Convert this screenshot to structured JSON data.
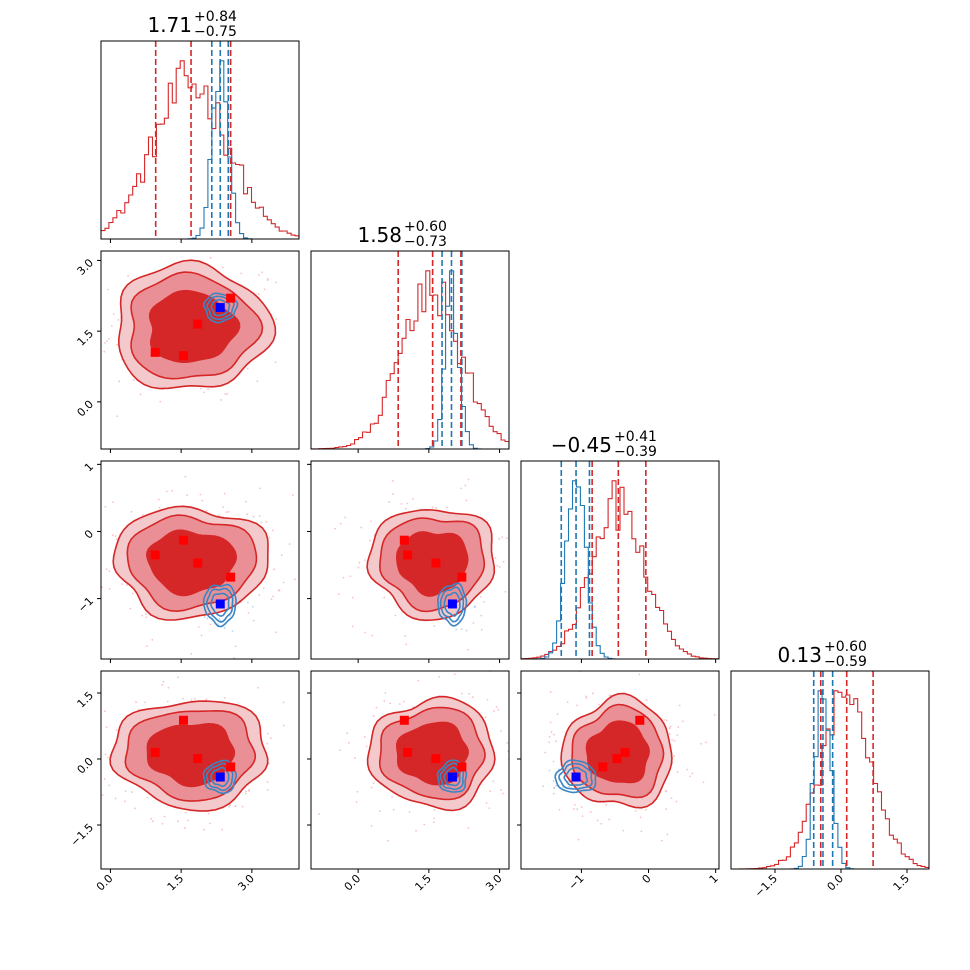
{
  "chart_data": {
    "type": "corner",
    "colors": {
      "red": "#d62728",
      "blue": "#1f77b4",
      "marker_red": "#ff0000",
      "marker_blue": "#0000ff"
    },
    "parameters": [
      {
        "range": [
          -0.2,
          4.0
        ],
        "ticks": [
          0.0,
          1.5,
          3.0
        ],
        "tick_labels": [
          "0.0",
          "1.5",
          "3.0"
        ],
        "title": {
          "value": "1.71",
          "plus": "+0.84",
          "minus": "−0.75"
        },
        "red_quantiles": [
          0.96,
          1.71,
          2.55
        ],
        "blue_quantiles": [
          2.15,
          2.33,
          2.5
        ],
        "red_hist": {
          "mean": 1.71,
          "sd": 0.8
        },
        "blue_hist": {
          "mean": 2.33,
          "sd": 0.17
        }
      },
      {
        "range": [
          -1.0,
          3.2
        ],
        "ticks": [
          0.0,
          1.5,
          3.0
        ],
        "tick_labels": [
          "0.0",
          "1.5",
          "3.0"
        ],
        "title": {
          "value": "1.58",
          "plus": "+0.60",
          "minus": "−0.73"
        },
        "red_quantiles": [
          0.85,
          1.58,
          2.18
        ],
        "blue_quantiles": [
          1.78,
          1.98,
          2.2
        ],
        "red_hist": {
          "mean": 1.55,
          "sd": 0.65
        },
        "blue_hist": {
          "mean": 2.0,
          "sd": 0.15
        }
      },
      {
        "range": [
          -1.9,
          1.05
        ],
        "ticks": [
          -1,
          0,
          1
        ],
        "tick_labels": [
          "−1",
          "0",
          "1"
        ],
        "title": {
          "value": "−0.45",
          "plus": "+0.41",
          "minus": "−0.39"
        },
        "red_quantiles": [
          -0.84,
          -0.45,
          -0.04
        ],
        "blue_quantiles": [
          -1.3,
          -1.08,
          -0.88
        ],
        "red_hist": {
          "mean": -0.45,
          "sd": 0.4
        },
        "blue_hist": {
          "mean": -1.08,
          "sd": 0.15
        }
      },
      {
        "range": [
          -2.5,
          2.0
        ],
        "ticks": [
          -1.5,
          0.0,
          1.5
        ],
        "tick_labels": [
          "−1.5",
          "0.0",
          "1.5"
        ],
        "title": {
          "value": "0.13",
          "plus": "+0.60",
          "minus": "−0.59"
        },
        "red_quantiles": [
          -0.46,
          0.13,
          0.73
        ],
        "blue_quantiles": [
          -0.62,
          -0.41,
          -0.19
        ],
        "red_hist": {
          "mean": 0.13,
          "sd": 0.6
        },
        "blue_hist": {
          "mean": -0.41,
          "sd": 0.18
        }
      }
    ],
    "red_points": [
      [
        0.95,
        1.05,
        -0.35,
        0.15
      ],
      [
        1.55,
        0.98,
        -0.13,
        0.88
      ],
      [
        1.85,
        1.65,
        -0.47,
        0.01
      ],
      [
        2.55,
        2.2,
        -0.68,
        -0.18
      ]
    ],
    "blue_point": [
      2.33,
      2.0,
      -1.08,
      -0.41
    ],
    "red_cloud": {
      "mean": [
        1.71,
        1.58,
        -0.45,
        0.13
      ],
      "sd": [
        0.8,
        0.65,
        0.4,
        0.6
      ]
    },
    "blue_cloud": {
      "mean": [
        2.33,
        2.0,
        -1.08,
        -0.41
      ],
      "sd": [
        0.17,
        0.15,
        0.15,
        0.18
      ]
    },
    "grid": false,
    "legend": "none"
  }
}
